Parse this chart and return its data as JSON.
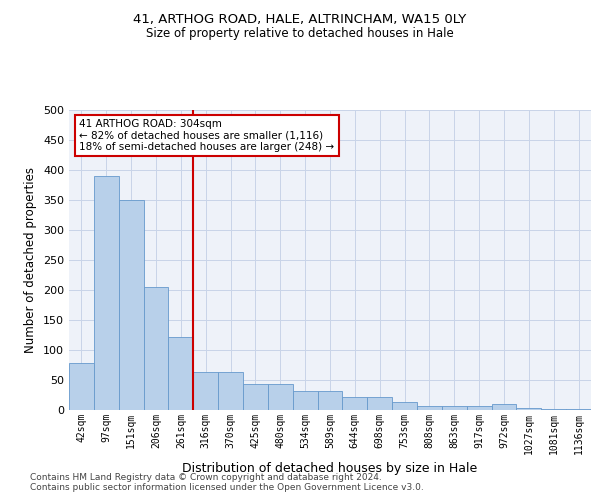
{
  "title1": "41, ARTHOG ROAD, HALE, ALTRINCHAM, WA15 0LY",
  "title2": "Size of property relative to detached houses in Hale",
  "xlabel": "Distribution of detached houses by size in Hale",
  "ylabel": "Number of detached properties",
  "bin_labels": [
    "42sqm",
    "97sqm",
    "151sqm",
    "206sqm",
    "261sqm",
    "316sqm",
    "370sqm",
    "425sqm",
    "480sqm",
    "534sqm",
    "589sqm",
    "644sqm",
    "698sqm",
    "753sqm",
    "808sqm",
    "863sqm",
    "917sqm",
    "972sqm",
    "1027sqm",
    "1081sqm",
    "1136sqm"
  ],
  "bar_heights": [
    78,
    390,
    350,
    205,
    122,
    63,
    63,
    44,
    44,
    32,
    32,
    22,
    22,
    14,
    7,
    7,
    6,
    10,
    3,
    2,
    1
  ],
  "bar_color": "#b8d0ea",
  "bar_edge_color": "#6699cc",
  "vline_color": "#cc0000",
  "annotation_line1": "41 ARTHOG ROAD: 304sqm",
  "annotation_line2": "← 82% of detached houses are smaller (1,116)",
  "annotation_line3": "18% of semi-detached houses are larger (248) →",
  "annotation_box_color": "#ffffff",
  "annotation_box_edge": "#cc0000",
  "ylim": [
    0,
    500
  ],
  "yticks": [
    0,
    50,
    100,
    150,
    200,
    250,
    300,
    350,
    400,
    450,
    500
  ],
  "footer1": "Contains HM Land Registry data © Crown copyright and database right 2024.",
  "footer2": "Contains public sector information licensed under the Open Government Licence v3.0.",
  "bg_color": "#eef2f9",
  "grid_color": "#c8d4e8"
}
